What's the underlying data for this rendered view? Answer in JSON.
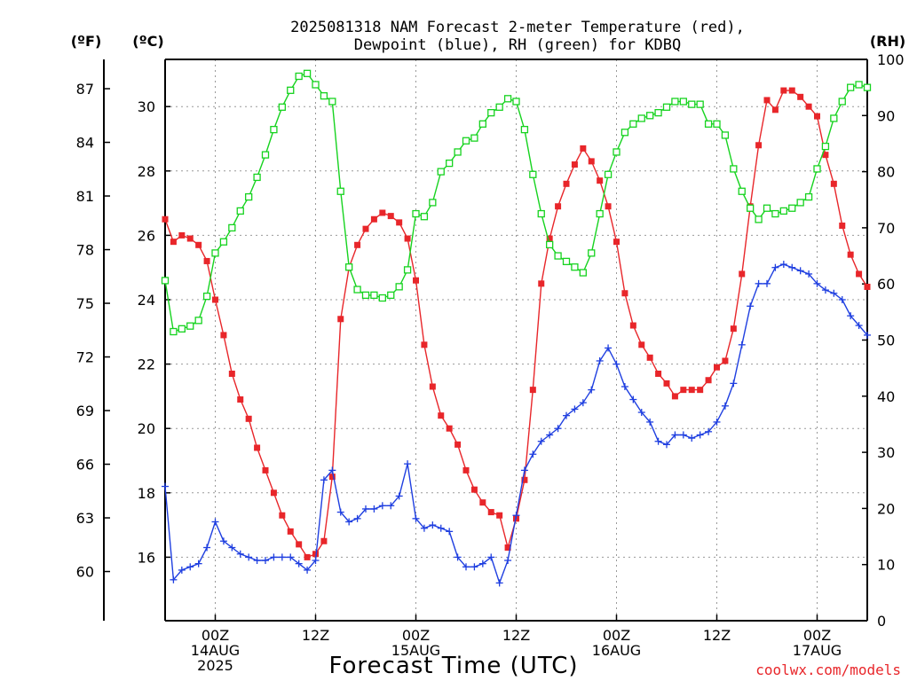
{
  "chart_data": {
    "type": "line",
    "title_line1": "2025081318 NAM Forecast 2-meter Temperature (red),",
    "title_line2": "Dewpoint (blue), RH (green) for KDBQ",
    "xlabel": "Forecast Time (UTC)",
    "credit": "coolwx.com/models",
    "left_f_axis": {
      "label": "(ºF)",
      "ticks": [
        "60",
        "63",
        "66",
        "69",
        "72",
        "75",
        "78",
        "81",
        "84",
        "87"
      ],
      "tick_values": [
        60,
        63,
        66,
        69,
        72,
        75,
        78,
        81,
        84,
        87
      ]
    },
    "left_c_axis": {
      "label": "(ºC)",
      "ticks": [
        "16",
        "18",
        "20",
        "22",
        "24",
        "26",
        "28",
        "30"
      ],
      "tick_values": [
        16,
        18,
        20,
        22,
        24,
        26,
        28,
        30
      ],
      "ylim": [
        14.0,
        31.5
      ]
    },
    "right_rh_axis": {
      "label": "(RH)",
      "ticks": [
        "0",
        "10",
        "20",
        "30",
        "40",
        "50",
        "60",
        "70",
        "80",
        "90",
        "100"
      ],
      "tick_values": [
        0,
        10,
        20,
        30,
        40,
        50,
        60,
        70,
        80,
        90,
        100
      ],
      "ylim": [
        0,
        100
      ]
    },
    "x_axis": {
      "range_hours": [
        0,
        84
      ],
      "ticks": [
        {
          "hour": 6,
          "line1": "00Z",
          "line2": "14AUG",
          "line3": "2025"
        },
        {
          "hour": 18,
          "line1": "12Z",
          "line2": "",
          "line3": ""
        },
        {
          "hour": 30,
          "line1": "00Z",
          "line2": "15AUG",
          "line3": ""
        },
        {
          "hour": 42,
          "line1": "12Z",
          "line2": "",
          "line3": ""
        },
        {
          "hour": 54,
          "line1": "00Z",
          "line2": "16AUG",
          "line3": ""
        },
        {
          "hour": 66,
          "line1": "12Z",
          "line2": "",
          "line3": ""
        },
        {
          "hour": 78,
          "line1": "00Z",
          "line2": "17AUG",
          "line3": ""
        }
      ]
    },
    "grid": true,
    "colors": {
      "temperature": "#e8262a",
      "dewpoint": "#1f3fe0",
      "rh": "#16d31f",
      "grid": "#999999",
      "credit": "#e8262a"
    },
    "series": [
      {
        "name": "Temperature (red)",
        "axis": "celsius",
        "marker": "filled-square",
        "hours": [
          0,
          1,
          2,
          3,
          4,
          5,
          6,
          7,
          8,
          9,
          10,
          11,
          12,
          13,
          14,
          15,
          16,
          17,
          18,
          19,
          20,
          21,
          22,
          23,
          24,
          25,
          26,
          27,
          28,
          29,
          30,
          31,
          32,
          33,
          34,
          35,
          36,
          37,
          38,
          39,
          40,
          41,
          42,
          43,
          44,
          45,
          46,
          47,
          48,
          49,
          50,
          51,
          52,
          53,
          54,
          55,
          56,
          57,
          58,
          59,
          60,
          61,
          62,
          63,
          64,
          65,
          66,
          67,
          68,
          69,
          70,
          71,
          72,
          73,
          74,
          75,
          76,
          77,
          78,
          79,
          80,
          81,
          82,
          83,
          84
        ],
        "values": [
          26.5,
          25.8,
          26.0,
          25.9,
          25.7,
          25.2,
          24.0,
          22.9,
          21.7,
          20.9,
          20.3,
          19.4,
          18.7,
          18.0,
          17.3,
          16.8,
          16.4,
          16.0,
          16.1,
          16.5,
          18.5,
          23.4,
          25.0,
          25.7,
          26.2,
          26.5,
          26.7,
          26.6,
          26.4,
          25.9,
          24.6,
          22.6,
          21.3,
          20.4,
          20.0,
          19.5,
          18.7,
          18.1,
          17.7,
          17.4,
          17.3,
          16.3,
          17.2,
          18.4,
          21.2,
          24.5,
          25.9,
          26.9,
          27.6,
          28.2,
          28.7,
          28.3,
          27.7,
          26.9,
          25.8,
          24.2,
          23.2,
          22.6,
          22.2,
          21.7,
          21.4,
          21.0,
          21.2,
          21.2,
          21.2,
          21.5,
          21.9,
          22.1,
          23.1,
          24.8,
          26.9,
          28.8,
          30.2,
          29.9,
          30.5,
          30.5,
          30.3,
          30.0,
          29.7,
          28.5,
          27.6,
          26.3,
          25.4,
          24.8,
          24.4
        ]
      },
      {
        "name": "Dewpoint (blue)",
        "axis": "celsius",
        "marker": "plus",
        "hours": [
          0,
          1,
          2,
          3,
          4,
          5,
          6,
          7,
          8,
          9,
          10,
          11,
          12,
          13,
          14,
          15,
          16,
          17,
          18,
          19,
          20,
          21,
          22,
          23,
          24,
          25,
          26,
          27,
          28,
          29,
          30,
          31,
          32,
          33,
          34,
          35,
          36,
          37,
          38,
          39,
          40,
          41,
          42,
          43,
          44,
          45,
          46,
          47,
          48,
          49,
          50,
          51,
          52,
          53,
          54,
          55,
          56,
          57,
          58,
          59,
          60,
          61,
          62,
          63,
          64,
          65,
          66,
          67,
          68,
          69,
          70,
          71,
          72,
          73,
          74,
          75,
          76,
          77,
          78,
          79,
          80,
          81,
          82,
          83,
          84
        ],
        "values": [
          18.2,
          15.3,
          15.6,
          15.7,
          15.8,
          16.3,
          17.1,
          16.5,
          16.3,
          16.1,
          16.0,
          15.9,
          15.9,
          16.0,
          16.0,
          16.0,
          15.8,
          15.6,
          15.9,
          18.4,
          18.7,
          17.4,
          17.1,
          17.2,
          17.5,
          17.5,
          17.6,
          17.6,
          17.9,
          18.9,
          17.2,
          16.9,
          17.0,
          16.9,
          16.8,
          16.0,
          15.7,
          15.7,
          15.8,
          16.0,
          15.2,
          15.9,
          17.3,
          18.7,
          19.2,
          19.6,
          19.8,
          20.0,
          20.4,
          20.6,
          20.8,
          21.2,
          22.1,
          22.5,
          22.0,
          21.3,
          20.9,
          20.5,
          20.2,
          19.6,
          19.5,
          19.8,
          19.8,
          19.7,
          19.8,
          19.9,
          20.2,
          20.7,
          21.4,
          22.6,
          23.8,
          24.5,
          24.5,
          25.0,
          25.1,
          25.0,
          24.9,
          24.8,
          24.5,
          24.3,
          24.2,
          24.0,
          23.5,
          23.2,
          22.9
        ]
      },
      {
        "name": "RH (green)",
        "axis": "rh",
        "marker": "open-square",
        "hours": [
          0,
          1,
          2,
          3,
          4,
          5,
          6,
          7,
          8,
          9,
          10,
          11,
          12,
          13,
          14,
          15,
          16,
          17,
          18,
          19,
          20,
          21,
          22,
          23,
          24,
          25,
          26,
          27,
          28,
          29,
          30,
          31,
          32,
          33,
          34,
          35,
          36,
          37,
          38,
          39,
          40,
          41,
          42,
          43,
          44,
          45,
          46,
          47,
          48,
          49,
          50,
          51,
          52,
          53,
          54,
          55,
          56,
          57,
          58,
          59,
          60,
          61,
          62,
          63,
          64,
          65,
          66,
          67,
          68,
          69,
          70,
          71,
          72,
          73,
          74,
          75,
          76,
          77,
          78,
          79,
          80,
          81,
          82,
          83,
          84
        ],
        "values": [
          60.6,
          51.5,
          52.0,
          52.5,
          53.5,
          57.8,
          65.5,
          67.5,
          70.0,
          73.0,
          75.5,
          79.0,
          83.0,
          87.5,
          91.5,
          94.5,
          97.0,
          97.5,
          95.5,
          93.5,
          92.5,
          76.5,
          63.0,
          59.0,
          58.0,
          58.0,
          57.5,
          58.0,
          59.5,
          62.5,
          72.5,
          72.0,
          74.5,
          80.0,
          81.5,
          83.5,
          85.5,
          86.0,
          88.5,
          90.5,
          91.5,
          93.0,
          92.5,
          87.5,
          79.5,
          72.5,
          67.0,
          65.0,
          64.0,
          63.0,
          62.0,
          65.5,
          72.5,
          79.5,
          83.5,
          87.0,
          88.5,
          89.5,
          90.0,
          90.5,
          91.5,
          92.5,
          92.5,
          92.0,
          92.0,
          88.5,
          88.5,
          86.5,
          80.5,
          76.5,
          73.5,
          71.5,
          73.5,
          72.5,
          73.0,
          73.5,
          74.5,
          75.5,
          80.5,
          84.5,
          89.5,
          92.5,
          95.0,
          95.5,
          95.0
        ]
      }
    ]
  }
}
